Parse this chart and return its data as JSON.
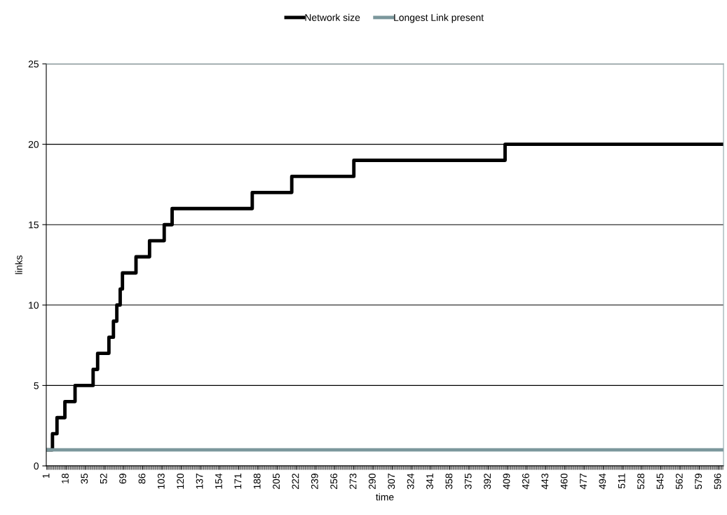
{
  "chart_data": {
    "type": "step",
    "xlabel": "time",
    "ylabel": "links",
    "xlim": [
      0.5,
      600.5
    ],
    "xticks": [
      1,
      18,
      35,
      52,
      69,
      86,
      103,
      120,
      137,
      154,
      171,
      188,
      205,
      222,
      239,
      256,
      273,
      290,
      307,
      324,
      341,
      358,
      375,
      392,
      409,
      426,
      443,
      460,
      477,
      494,
      511,
      528,
      545,
      562,
      579,
      596
    ],
    "ylim": [
      0,
      25
    ],
    "yticks": [
      0,
      5,
      10,
      15,
      20,
      25
    ],
    "grid": "y",
    "legend": "top",
    "marker": "none",
    "line_style": "solid",
    "series": [
      {
        "name": "Network size",
        "color": "#000000",
        "x": [
          1,
          6,
          10,
          17,
          26,
          42,
          46,
          56,
          60,
          63,
          66,
          68,
          80,
          92,
          105,
          112,
          183,
          218,
          273,
          407,
          600
        ],
        "values": [
          1,
          2,
          3,
          4,
          5,
          6,
          7,
          8,
          9,
          10,
          11,
          12,
          13,
          14,
          15,
          16,
          17,
          18,
          19,
          20,
          20
        ]
      },
      {
        "name": "Longest Link present",
        "color": "#7b979c",
        "type": "line",
        "x": [
          1,
          600
        ],
        "values": [
          1,
          1
        ]
      }
    ]
  }
}
